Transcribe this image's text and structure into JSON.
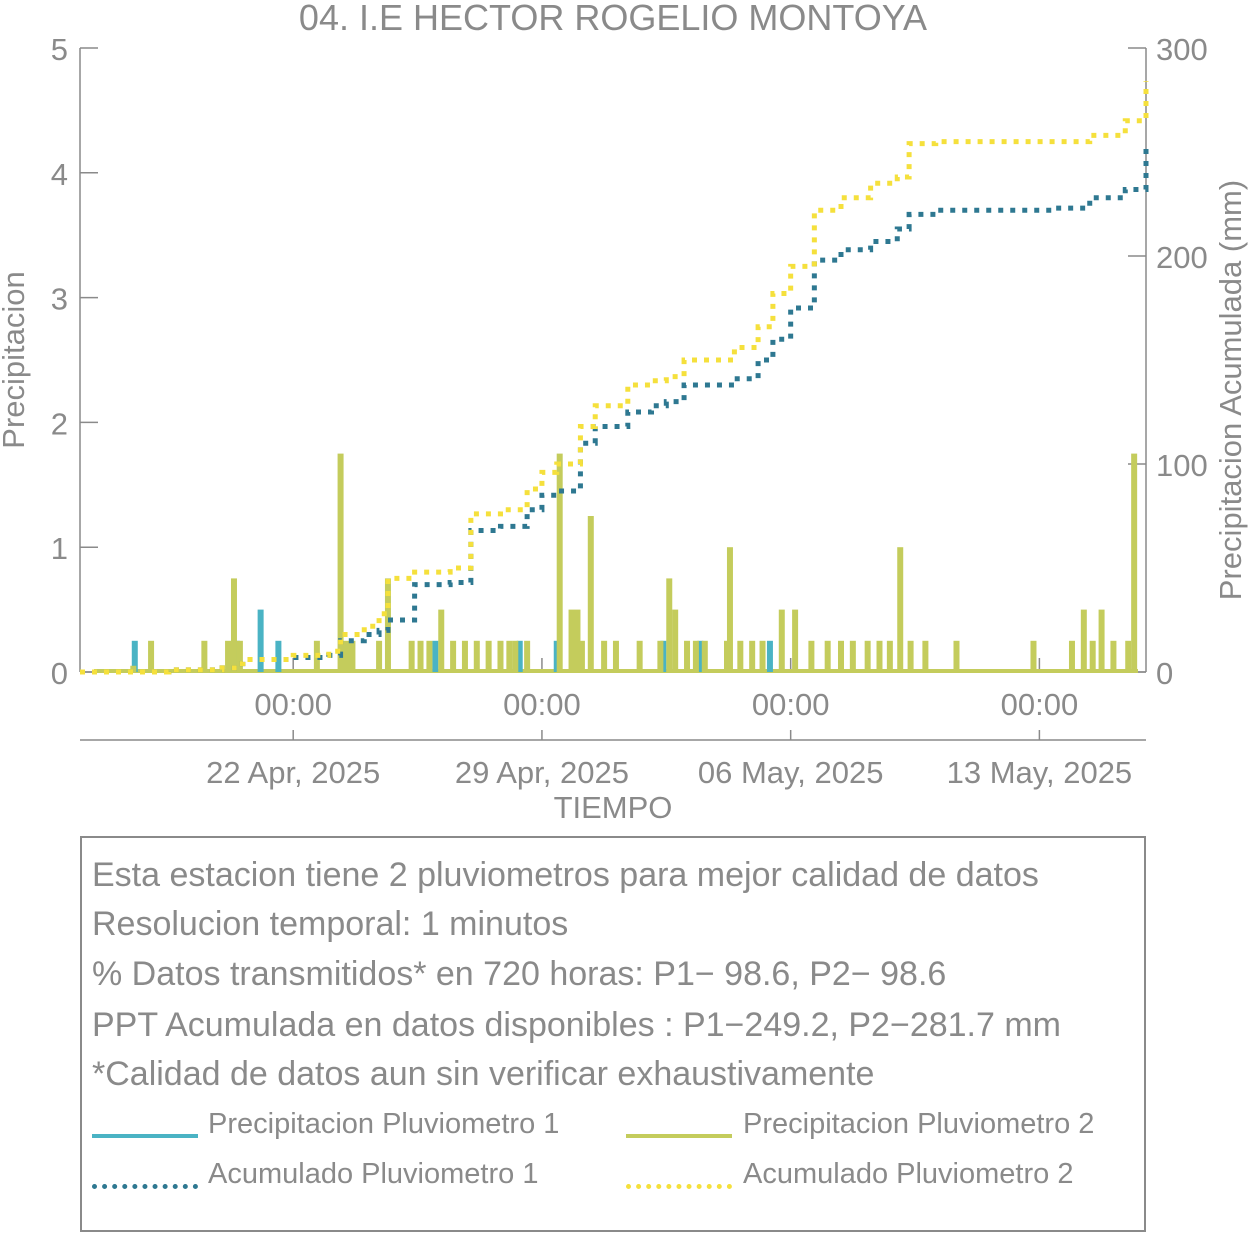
{
  "chart_data": {
    "type": "bar",
    "title": "04. I.E HECTOR ROGELIO MONTOYA",
    "xlabel": "TIEMPO",
    "ylabel_left": "Precipitacion",
    "ylabel_right": "Precipitacion Acumulada (mm)",
    "ylim_left": [
      0,
      5
    ],
    "ylim_right": [
      0,
      300
    ],
    "yticks_left": [
      "0",
      "1",
      "2",
      "3",
      "4",
      "5"
    ],
    "yticks_right": [
      "0",
      "100",
      "200",
      "300"
    ],
    "xlim": [
      "2025-04-16T00:00",
      "2025-05-16T00:00"
    ],
    "xticks": [
      {
        "t": "2025-04-22T00:00",
        "time": "00:00",
        "date": "22 Apr, 2025"
      },
      {
        "t": "2025-04-29T00:00",
        "time": "00:00",
        "date": "29 Apr, 2025"
      },
      {
        "t": "2025-05-06T00:00",
        "time": "00:00",
        "date": "06 May, 2025"
      },
      {
        "t": "2025-05-13T00:00",
        "time": "00:00",
        "date": "13 May, 2025"
      }
    ],
    "colors": {
      "p1": "#4ab3c4",
      "p2": "#c4cc5c",
      "acum1": "#2e7891",
      "acum2": "#f5e03c",
      "text": "#8a8a8a",
      "axis": "#8a8a8a"
    },
    "series": [
      {
        "name": "Precipitacion Pluviometro 1",
        "kind": "bars",
        "x": [
          "2025-04-17T13:00",
          "2025-04-20T10:00",
          "2025-04-21T02:00",
          "2025-04-21T14:00",
          "2025-04-29T10:00",
          "2025-04-28T09:00",
          "2025-05-03T11:00",
          "2025-05-05T10:00",
          "2025-04-26T00:00",
          "2025-05-02T10:00"
        ],
        "values": [
          0.25,
          0.25,
          0.5,
          0.25,
          0.25,
          0.25,
          0.25,
          0.25,
          0.25,
          0.25
        ]
      },
      {
        "name": "Precipitacion Pluviometro 2",
        "kind": "bars",
        "x": [
          "2025-04-17T12:00",
          "2025-04-18T00:00",
          "2025-04-19T12:00",
          "2025-04-20T04:00",
          "2025-04-20T08:00",
          "2025-04-20T12:00",
          "2025-04-22T16:00",
          "2025-04-23T08:00",
          "2025-04-23T12:00",
          "2025-04-23T16:00",
          "2025-04-24T10:00",
          "2025-04-24T16:00",
          "2025-04-25T08:00",
          "2025-04-25T14:00",
          "2025-04-25T20:00",
          "2025-04-26T04:00",
          "2025-04-26T12:00",
          "2025-04-26T20:00",
          "2025-04-27T04:00",
          "2025-04-27T12:00",
          "2025-04-27T20:00",
          "2025-04-28T02:00",
          "2025-04-28T06:00",
          "2025-04-28T14:00",
          "2025-04-29T12:00",
          "2025-04-29T20:00",
          "2025-04-30T00:00",
          "2025-04-30T03:00",
          "2025-04-30T09:00",
          "2025-04-30T18:00",
          "2025-05-01T02:00",
          "2025-05-01T18:00",
          "2025-05-02T08:00",
          "2025-05-02T14:00",
          "2025-05-02T18:00",
          "2025-05-03T02:00",
          "2025-05-03T08:00",
          "2025-05-03T14:00",
          "2025-05-04T05:00",
          "2025-05-04T07:00",
          "2025-05-04T14:00",
          "2025-05-04T22:00",
          "2025-05-05T05:00",
          "2025-05-05T18:00",
          "2025-05-06T03:00",
          "2025-05-06T14:00",
          "2025-05-07T01:00",
          "2025-05-07T10:00",
          "2025-05-07T18:00",
          "2025-05-08T04:00",
          "2025-05-08T12:00",
          "2025-05-08T19:00",
          "2025-05-09T02:00",
          "2025-05-09T09:00",
          "2025-05-09T19:00",
          "2025-05-10T16:00",
          "2025-05-12T20:00",
          "2025-05-13T22:00",
          "2025-05-14T06:00",
          "2025-05-14T12:00",
          "2025-05-14T18:00",
          "2025-05-15T02:00",
          "2025-05-15T12:00",
          "2025-05-15T16:00"
        ],
        "values": [
          0.05,
          0.25,
          0.25,
          0.25,
          0.75,
          0.25,
          0.25,
          1.75,
          0.25,
          0.25,
          0.25,
          0.75,
          0.25,
          0.25,
          0.25,
          0.5,
          0.25,
          0.25,
          0.25,
          0.25,
          0.25,
          0.25,
          0.25,
          0.25,
          1.75,
          0.5,
          0.5,
          0.25,
          1.25,
          0.25,
          0.25,
          0.25,
          0.25,
          0.75,
          0.5,
          0.25,
          0.25,
          0.25,
          0.25,
          1.0,
          0.25,
          0.25,
          0.25,
          0.5,
          0.5,
          0.25,
          0.25,
          0.25,
          0.25,
          0.25,
          0.25,
          0.25,
          1.0,
          0.25,
          0.25,
          0.25,
          0.25,
          0.25,
          0.5,
          0.25,
          0.5,
          0.25,
          0.25,
          1.75
        ]
      },
      {
        "name": "Acumulado Pluviometro 1",
        "kind": "dotted-line",
        "x": [
          "2025-04-16T00:00",
          "2025-04-17T12:00",
          "2025-04-18T12:00",
          "2025-04-20T00:00",
          "2025-04-20T10:00",
          "2025-04-20T14:00",
          "2025-04-22T00:00",
          "2025-04-23T00:00",
          "2025-04-23T08:00",
          "2025-04-24T00:00",
          "2025-04-24T10:00",
          "2025-04-24T16:00",
          "2025-04-25T10:00",
          "2025-04-26T10:00",
          "2025-04-27T00:00",
          "2025-04-27T20:00",
          "2025-04-28T14:00",
          "2025-04-29T00:00",
          "2025-04-29T10:00",
          "2025-04-30T02:00",
          "2025-04-30T12:00",
          "2025-05-01T10:00",
          "2025-05-02T02:00",
          "2025-05-02T12:00",
          "2025-05-03T00:00",
          "2025-05-04T10:00",
          "2025-05-05T02:00",
          "2025-05-05T12:00",
          "2025-05-06T00:00",
          "2025-05-06T16:00",
          "2025-05-07T10:00",
          "2025-05-08T06:00",
          "2025-05-09T00:00",
          "2025-05-09T08:00",
          "2025-05-10T02:00",
          "2025-05-12T08:00",
          "2025-05-13T08:00",
          "2025-05-14T10:00",
          "2025-05-15T10:00",
          "2025-05-16T00:00"
        ],
        "values": [
          0,
          0,
          1,
          2,
          4,
          6,
          7,
          8,
          15,
          18,
          20,
          25,
          42,
          43,
          68,
          70,
          78,
          85,
          87,
          110,
          118,
          125,
          128,
          130,
          138,
          141,
          150,
          160,
          175,
          198,
          203,
          207,
          213,
          220,
          222,
          222,
          223,
          228,
          232,
          252
        ]
      },
      {
        "name": "Acumulado Pluviometro 2",
        "kind": "dotted-line",
        "x": [
          "2025-04-16T00:00",
          "2025-04-17T12:00",
          "2025-04-18T12:00",
          "2025-04-20T00:00",
          "2025-04-20T10:00",
          "2025-04-20T14:00",
          "2025-04-22T00:00",
          "2025-04-23T00:00",
          "2025-04-23T08:00",
          "2025-04-24T00:00",
          "2025-04-24T10:00",
          "2025-04-24T16:00",
          "2025-04-25T10:00",
          "2025-04-26T10:00",
          "2025-04-27T00:00",
          "2025-04-27T20:00",
          "2025-04-28T14:00",
          "2025-04-29T00:00",
          "2025-04-29T10:00",
          "2025-04-30T02:00",
          "2025-04-30T12:00",
          "2025-05-01T10:00",
          "2025-05-02T02:00",
          "2025-05-02T12:00",
          "2025-05-03T00:00",
          "2025-05-04T10:00",
          "2025-05-05T02:00",
          "2025-05-05T12:00",
          "2025-05-06T00:00",
          "2025-05-06T16:00",
          "2025-05-07T10:00",
          "2025-05-08T06:00",
          "2025-05-09T00:00",
          "2025-05-09T08:00",
          "2025-05-10T02:00",
          "2025-05-12T08:00",
          "2025-05-13T08:00",
          "2025-05-14T10:00",
          "2025-05-15T10:00",
          "2025-05-16T00:00"
        ],
        "values": [
          0,
          0,
          1,
          2,
          4,
          6,
          8,
          10,
          18,
          22,
          28,
          45,
          48,
          50,
          76,
          78,
          88,
          96,
          100,
          118,
          128,
          138,
          140,
          142,
          150,
          156,
          166,
          182,
          195,
          222,
          228,
          235,
          238,
          254,
          255,
          255,
          255,
          258,
          265,
          284
        ]
      }
    ]
  },
  "info": {
    "lines": [
      "Esta estacion tiene 2 pluviometros para mejor calidad de datos",
      "Resolucion temporal: 1 minutos",
      "% Datos transmitidos* en 720 horas: P1− 98.6, P2− 98.6",
      "PPT Acumulada en datos disponibles : P1−249.2, P2−281.7 mm",
      "*Calidad de datos aun sin verificar exhaustivamente"
    ],
    "legend": [
      "Precipitacion Pluviometro 1",
      "Precipitacion Pluviometro 2",
      "Acumulado Pluviometro 1",
      "Acumulado Pluviometro 2"
    ]
  }
}
